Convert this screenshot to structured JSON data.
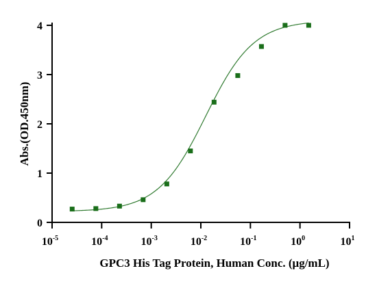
{
  "chart_data": {
    "type": "scatter",
    "title": "",
    "xlabel": "GPC3 His Tag Protein, Human Conc. (μg/mL)",
    "ylabel": "Abs.(OD.450nm)",
    "x_scale": "log10",
    "xlim": [
      1e-05,
      10
    ],
    "ylim": [
      0,
      4
    ],
    "x_ticks": [
      {
        "base": "10",
        "exp": "-5"
      },
      {
        "base": "10",
        "exp": "-4"
      },
      {
        "base": "10",
        "exp": "-3"
      },
      {
        "base": "10",
        "exp": "-2"
      },
      {
        "base": "10",
        "exp": "-1"
      },
      {
        "base": "10",
        "exp": "0"
      },
      {
        "base": "10",
        "exp": "1"
      }
    ],
    "y_ticks": [
      "0",
      "1",
      "2",
      "3",
      "4"
    ],
    "grid": false,
    "legend": "none",
    "marker_color": "#1a6e1a",
    "line_color": "#2f7a2f",
    "series": [
      {
        "x": [
          2.54e-05,
          7.63e-05,
          0.000229,
          0.000686,
          0.00206,
          0.00617,
          0.0185,
          0.0556,
          0.167,
          0.5,
          1.5
        ],
        "y": [
          0.27,
          0.28,
          0.33,
          0.46,
          0.78,
          1.45,
          2.44,
          2.98,
          3.57,
          4.0,
          4.0
        ]
      }
    ],
    "fit_curve": {
      "type": "4PL",
      "bottom": 0.22,
      "top": 4.1,
      "ec50": 0.0126,
      "hill": 0.9
    }
  }
}
